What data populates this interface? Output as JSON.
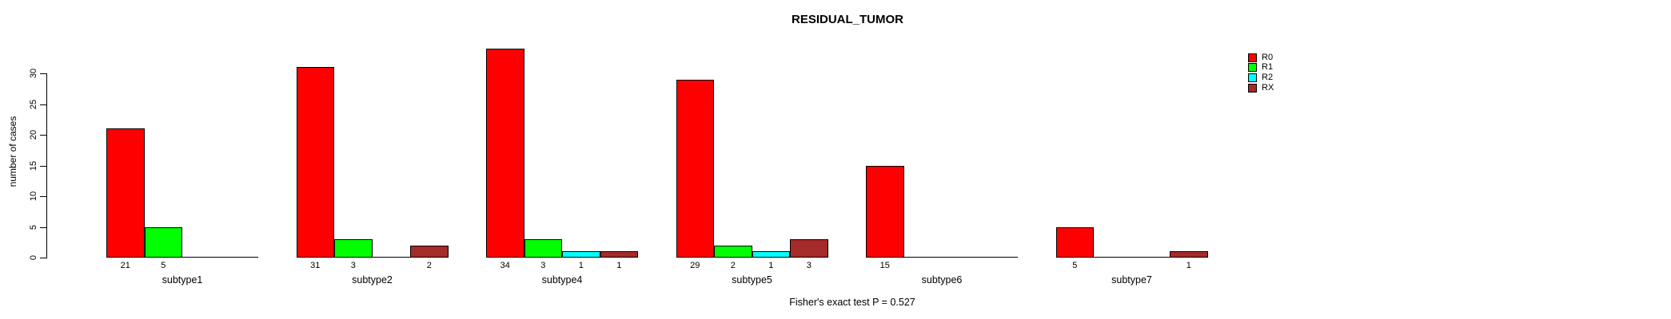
{
  "chart_data": {
    "type": "bar",
    "title": "RESIDUAL_TUMOR",
    "xlabel": "",
    "ylabel": "number of cases",
    "ylim": [
      0,
      30
    ],
    "yticks": [
      0,
      5,
      10,
      15,
      20,
      25,
      30
    ],
    "grid": false,
    "legend_position": "right",
    "categories": [
      "subtype1",
      "subtype2",
      "subtype4",
      "subtype5",
      "subtype6",
      "subtype7"
    ],
    "series": [
      {
        "name": "R0",
        "color": "#FF0000",
        "values": [
          21,
          31,
          34,
          29,
          15,
          5
        ]
      },
      {
        "name": "R1",
        "color": "#00FF00",
        "values": [
          5,
          3,
          3,
          2,
          0,
          0
        ]
      },
      {
        "name": "R2",
        "color": "#00FFFF",
        "values": [
          0,
          0,
          1,
          1,
          0,
          0
        ]
      },
      {
        "name": "RX",
        "color": "#A52A2A",
        "values": [
          0,
          2,
          1,
          3,
          0,
          1
        ]
      }
    ],
    "value_labels": "counts shown under each nonzero bar",
    "annotation": "Fisher's exact test P = 0.527"
  }
}
